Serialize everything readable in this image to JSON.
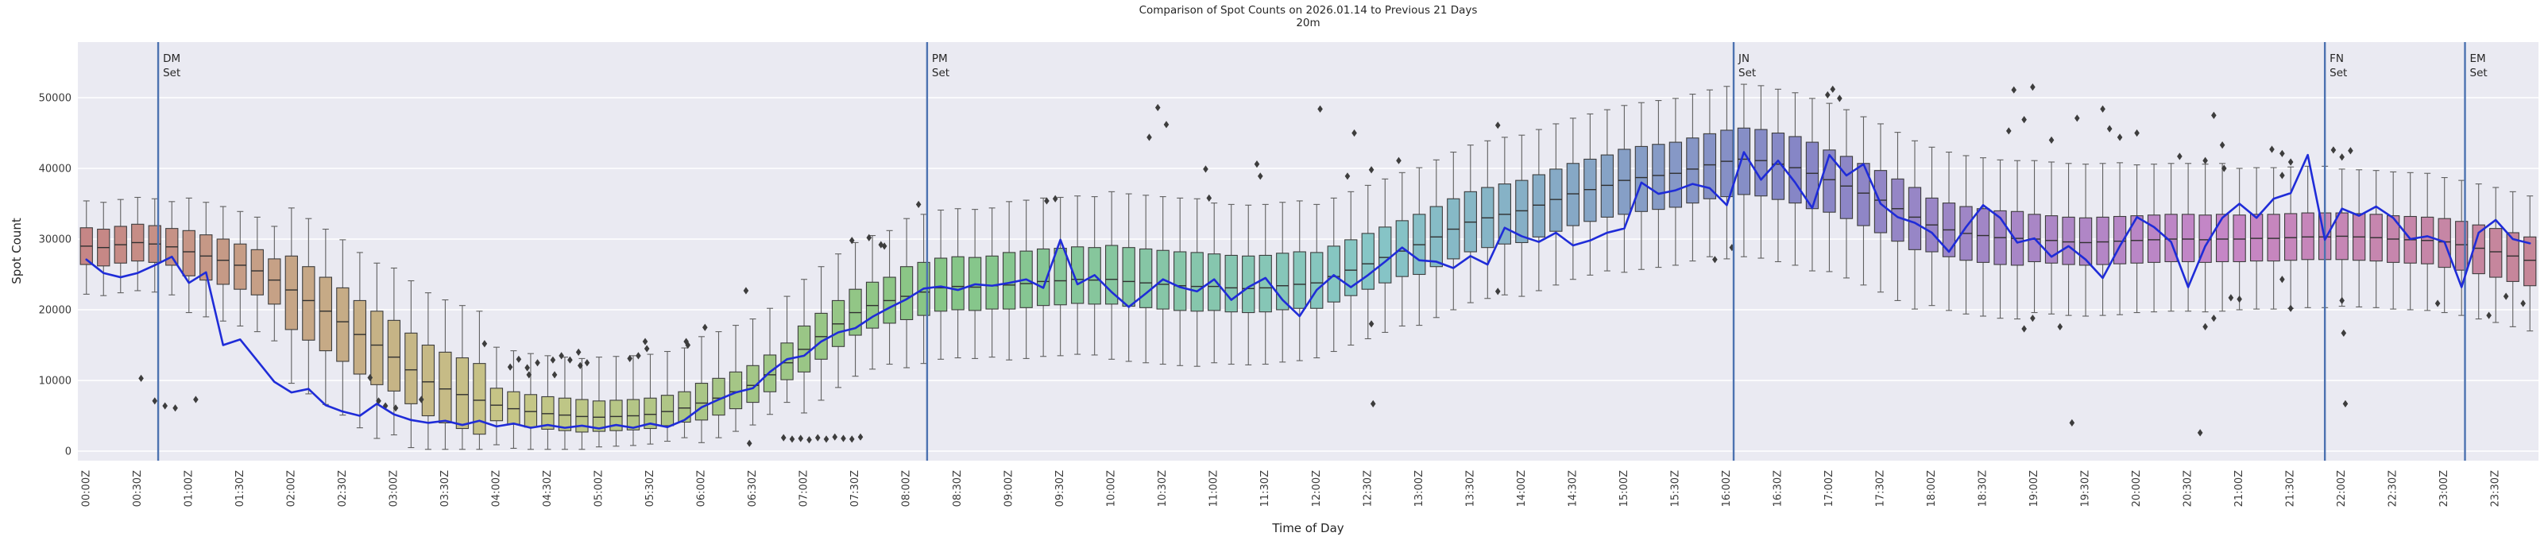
{
  "header": {
    "title": "Comparison of Spot Counts on 2026.01.14 to Previous 21 Days",
    "subtitle": "20m"
  },
  "axes": {
    "xlabel": "Time of Day",
    "ylabel": "Spot Count",
    "y_ticks": [
      0,
      10000,
      20000,
      30000,
      40000,
      50000
    ],
    "x_tick_labels": [
      "00:00Z",
      "00:30Z",
      "01:00Z",
      "01:30Z",
      "02:00Z",
      "02:30Z",
      "03:00Z",
      "03:30Z",
      "04:00Z",
      "04:30Z",
      "05:00Z",
      "05:30Z",
      "06:00Z",
      "06:30Z",
      "07:00Z",
      "07:30Z",
      "08:00Z",
      "08:30Z",
      "09:00Z",
      "09:30Z",
      "10:00Z",
      "10:30Z",
      "11:00Z",
      "11:30Z",
      "12:00Z",
      "12:30Z",
      "13:00Z",
      "13:30Z",
      "14:00Z",
      "14:30Z",
      "15:00Z",
      "15:30Z",
      "16:00Z",
      "16:30Z",
      "17:00Z",
      "17:30Z",
      "18:00Z",
      "18:30Z",
      "19:00Z",
      "19:30Z",
      "20:00Z",
      "20:30Z",
      "21:00Z",
      "21:30Z",
      "22:00Z",
      "22:30Z",
      "23:00Z",
      "23:30Z"
    ]
  },
  "set_lines": [
    {
      "label_line1": "DM",
      "label_line2": "Set",
      "minutes": 42
    },
    {
      "label_line1": "PM",
      "label_line2": "Set",
      "minutes": 492
    },
    {
      "label_line1": "JN",
      "label_line2": "Set",
      "minutes": 964
    },
    {
      "label_line1": "FN",
      "label_line2": "Set",
      "minutes": 1310
    },
    {
      "label_line1": "EM",
      "label_line2": "Set",
      "minutes": 1392
    }
  ],
  "colors": {
    "figure_bg": "#ffffff",
    "plot_bg": "#eaeaf2",
    "grid": "#ffffff",
    "box_edge": "#3d3d3d",
    "median_line": "#303030",
    "whisker": "#606060",
    "flier": "#3d3d3d",
    "today_line": "#1f2cd8",
    "set_line": "#4c72b0",
    "text": "#262626",
    "tick_text": "#3b3b3b",
    "box_hue_span": 345,
    "box_saturation": 36,
    "box_lightness": 65
  },
  "chart_data": {
    "type": "boxplot+line",
    "title": "Comparison of Spot Counts on 2026.01.14 to Previous 21 Days",
    "subtitle": "20m",
    "xlabel": "Time of Day",
    "ylabel": "Spot Count",
    "legend_position": "none",
    "grid": "horizontal-only",
    "ylim": [
      -1500,
      58000
    ],
    "x_start_minutes": 0,
    "x_step_minutes": 10,
    "n_boxes": 144,
    "median": [
      29000,
      28800,
      29200,
      29500,
      29300,
      28900,
      28200,
      27600,
      27000,
      26300,
      25500,
      24200,
      22800,
      21300,
      19800,
      18300,
      16500,
      15000,
      13300,
      11500,
      9800,
      8800,
      8000,
      7200,
      6500,
      6000,
      5600,
      5300,
      5100,
      4900,
      4800,
      4900,
      5000,
      5200,
      5600,
      6100,
      6800,
      7500,
      8400,
      9300,
      10800,
      12500,
      14400,
      16200,
      18000,
      19600,
      20600,
      21300,
      21900,
      22500,
      23100,
      23300,
      23200,
      23400,
      23500,
      23700,
      24000,
      24100,
      24300,
      24200,
      24300,
      24000,
      23800,
      23600,
      23400,
      23300,
      23300,
      23100,
      23000,
      23100,
      23400,
      23600,
      23800,
      24700,
      25600,
      26500,
      27400,
      28300,
      29200,
      30300,
      31400,
      32400,
      33000,
      33500,
      34000,
      34800,
      35600,
      36400,
      37000,
      37600,
      38300,
      38700,
      39000,
      39300,
      39900,
      40500,
      41000,
      41300,
      41100,
      40600,
      40100,
      39300,
      38400,
      37500,
      36500,
      35500,
      34300,
      33100,
      32000,
      31300,
      30800,
      30500,
      30200,
      30100,
      30000,
      29800,
      29600,
      29500,
      29600,
      29700,
      29800,
      29900,
      30000,
      30000,
      29900,
      30000,
      30000,
      30100,
      30100,
      30200,
      30300,
      30300,
      30400,
      30300,
      30200,
      30000,
      29900,
      29800,
      29600,
      29200,
      28700,
      28200,
      27600,
      27000
    ],
    "today_line": [
      27100,
      25200,
      24600,
      25200,
      26300,
      27500,
      23800,
      25300,
      15000,
      15800,
      12800,
      9800,
      8300,
      8800,
      6500,
      5600,
      5000,
      6700,
      5200,
      4400,
      4000,
      4300,
      3700,
      4300,
      3500,
      3900,
      3300,
      3700,
      3300,
      3600,
      3200,
      3700,
      3300,
      3900,
      3400,
      4400,
      6200,
      7300,
      8300,
      8900,
      11200,
      13000,
      13500,
      15500,
      16800,
      17400,
      19000,
      20300,
      21500,
      23000,
      23300,
      22800,
      23600,
      23400,
      23800,
      24300,
      23100,
      29900,
      23600,
      24900,
      22500,
      20400,
      22300,
      24300,
      23200,
      22600,
      24300,
      21400,
      23200,
      24500,
      21400,
      19100,
      22800,
      24900,
      23200,
      24900,
      26800,
      28800,
      27000,
      26800,
      25900,
      27600,
      26400,
      31600,
      30400,
      29600,
      30900,
      29100,
      29800,
      30900,
      31500,
      38000,
      36400,
      36900,
      37800,
      37200,
      34800,
      42300,
      38400,
      41100,
      38000,
      34400,
      41900,
      39000,
      40600,
      35000,
      33100,
      32300,
      30900,
      28200,
      31700,
      34800,
      33000,
      29500,
      30100,
      27500,
      29000,
      27100,
      24500,
      29000,
      33100,
      31700,
      29600,
      23200,
      29000,
      33000,
      35000,
      33000,
      35700,
      36500,
      41900,
      29900,
      34300,
      33300,
      34600,
      33000,
      30000,
      30400,
      29600,
      23200,
      30900,
      32700,
      30000,
      29400
    ],
    "iqr_up_hourly": [
      2600,
      3000,
      4800,
      5200,
      2400,
      2300,
      2800,
      3300,
      4200,
      4600,
      4800,
      4600,
      4300,
      4300,
      4300,
      4400,
      4400,
      4200,
      3800,
      3500,
      3500,
      3400,
      3300,
      3300
    ],
    "iqr_dn_hourly": [
      2600,
      3400,
      5600,
      4800,
      2200,
      2000,
      2400,
      3200,
      3300,
      3400,
      3500,
      3400,
      3600,
      4200,
      4500,
      4800,
      5000,
      4600,
      3800,
      3200,
      3200,
      3200,
      3300,
      3600
    ],
    "whisker_up_hourly": [
      3800,
      4600,
      6800,
      7400,
      5800,
      6200,
      6600,
      6600,
      6800,
      7200,
      7600,
      7200,
      6800,
      6600,
      6400,
      6200,
      6200,
      6600,
      7200,
      7600,
      7200,
      6600,
      6200,
      5800
    ],
    "whisker_dn_hourly": [
      4200,
      5200,
      7600,
      6200,
      3400,
      2200,
      3200,
      5800,
      6800,
      7200,
      7800,
      7400,
      7000,
      7200,
      7600,
      8200,
      8800,
      8400,
      7600,
      7200,
      7000,
      6800,
      6600,
      6400
    ],
    "outliers": [
      [
        32,
        10300
      ],
      [
        40,
        7100
      ],
      [
        46,
        6400
      ],
      [
        52,
        6100
      ],
      [
        64,
        7300
      ],
      [
        166,
        10400
      ],
      [
        171,
        7100
      ],
      [
        175,
        6400
      ],
      [
        181,
        6100
      ],
      [
        196,
        7300
      ],
      [
        233,
        15200
      ],
      [
        248,
        11900
      ],
      [
        253,
        13000
      ],
      [
        258,
        11800
      ],
      [
        259,
        10800
      ],
      [
        264,
        12500
      ],
      [
        273,
        12900
      ],
      [
        274,
        10800
      ],
      [
        278,
        13500
      ],
      [
        283,
        12900
      ],
      [
        288,
        14000
      ],
      [
        289,
        12100
      ],
      [
        293,
        12500
      ],
      [
        318,
        13100
      ],
      [
        323,
        13500
      ],
      [
        327,
        15500
      ],
      [
        328,
        14500
      ],
      [
        351,
        15500
      ],
      [
        352,
        15000
      ],
      [
        362,
        17500
      ],
      [
        386,
        22700
      ],
      [
        388,
        1100
      ],
      [
        408,
        1900
      ],
      [
        413,
        1700
      ],
      [
        418,
        1800
      ],
      [
        423,
        1600
      ],
      [
        428,
        1900
      ],
      [
        433,
        1700
      ],
      [
        438,
        2000
      ],
      [
        443,
        1800
      ],
      [
        448,
        1700
      ],
      [
        453,
        2000
      ],
      [
        448,
        29800
      ],
      [
        458,
        30200
      ],
      [
        465,
        29200
      ],
      [
        467,
        29000
      ],
      [
        487,
        34900
      ],
      [
        562,
        35400
      ],
      [
        567,
        35700
      ],
      [
        622,
        44400
      ],
      [
        627,
        48600
      ],
      [
        632,
        46200
      ],
      [
        655,
        39900
      ],
      [
        657,
        35800
      ],
      [
        685,
        40600
      ],
      [
        687,
        38900
      ],
      [
        722,
        48400
      ],
      [
        738,
        38900
      ],
      [
        742,
        45000
      ],
      [
        752,
        39800
      ],
      [
        752,
        18000
      ],
      [
        753,
        6700
      ],
      [
        768,
        41100
      ],
      [
        826,
        46100
      ],
      [
        826,
        22600
      ],
      [
        953,
        27100
      ],
      [
        963,
        28800
      ],
      [
        1019,
        50400
      ],
      [
        1022,
        51200
      ],
      [
        1026,
        49900
      ],
      [
        1125,
        45300
      ],
      [
        1128,
        51100
      ],
      [
        1134,
        46900
      ],
      [
        1134,
        17300
      ],
      [
        1139,
        51500
      ],
      [
        1139,
        18800
      ],
      [
        1150,
        44000
      ],
      [
        1155,
        17600
      ],
      [
        1162,
        4000
      ],
      [
        1165,
        47100
      ],
      [
        1180,
        48400
      ],
      [
        1184,
        45600
      ],
      [
        1190,
        44400
      ],
      [
        1200,
        45000
      ],
      [
        1225,
        41700
      ],
      [
        1237,
        2600
      ],
      [
        1240,
        41100
      ],
      [
        1240,
        17600
      ],
      [
        1245,
        47500
      ],
      [
        1245,
        18800
      ],
      [
        1250,
        43300
      ],
      [
        1251,
        40000
      ],
      [
        1255,
        21700
      ],
      [
        1260,
        21500
      ],
      [
        1279,
        42700
      ],
      [
        1285,
        42100
      ],
      [
        1285,
        39000
      ],
      [
        1285,
        24300
      ],
      [
        1290,
        40900
      ],
      [
        1290,
        20200
      ],
      [
        1315,
        42600
      ],
      [
        1320,
        41600
      ],
      [
        1320,
        21300
      ],
      [
        1321,
        16700
      ],
      [
        1322,
        6700
      ],
      [
        1325,
        42500
      ],
      [
        1376,
        20900
      ],
      [
        1406,
        19200
      ],
      [
        1416,
        21900
      ],
      [
        1426,
        20900
      ]
    ]
  }
}
